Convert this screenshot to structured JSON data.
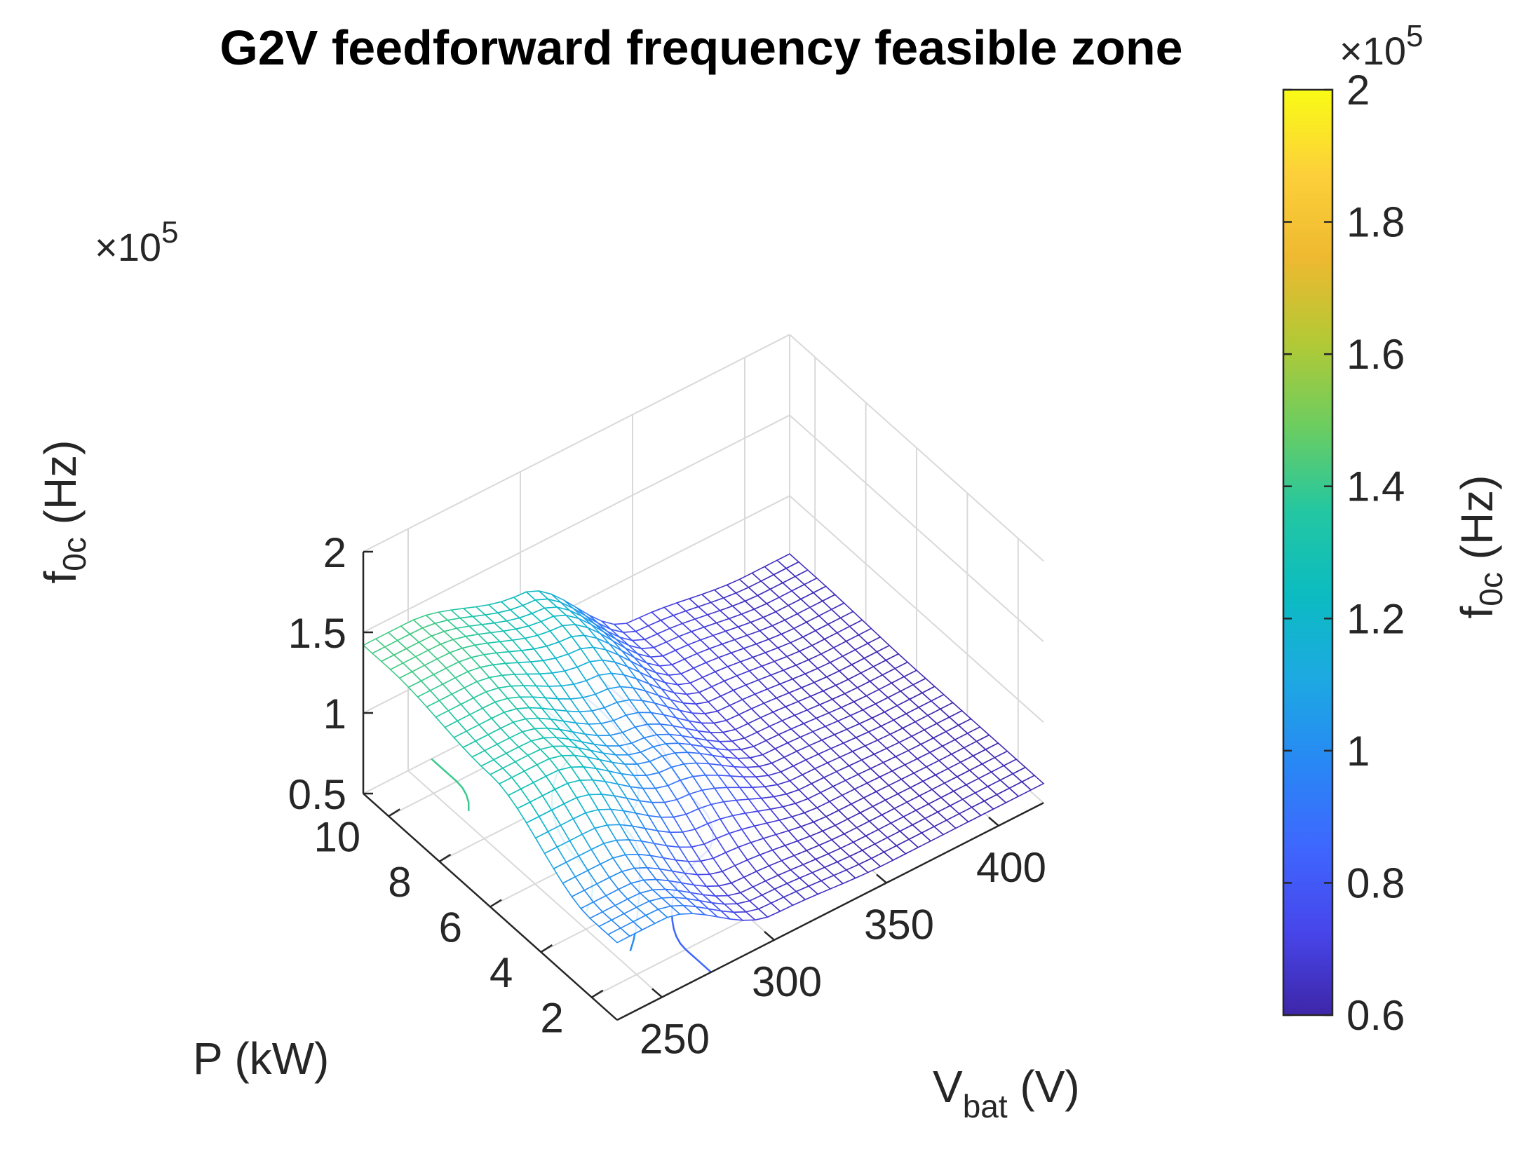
{
  "chart_data": {
    "type": "surface3d",
    "title": "G2V feedforward frequency feasible zone",
    "x_axis": {
      "label_main": "V",
      "label_sub": "bat",
      "label_unit": " (V)",
      "ticks": [
        250,
        300,
        350,
        400
      ],
      "range": [
        230,
        420
      ]
    },
    "y_axis": {
      "label": "P (kW)",
      "ticks": [
        2,
        4,
        6,
        8,
        10
      ],
      "range": [
        1,
        11
      ]
    },
    "z_axis": {
      "label_main": "f",
      "label_sub": "0c",
      "label_unit": " (Hz)",
      "ticks": [
        0.5,
        1,
        1.5,
        2
      ],
      "tick_labels": [
        "0.5",
        "1",
        "1.5",
        "2"
      ],
      "range": [
        0.5,
        2
      ],
      "exponent_base": "×10",
      "exponent": "5"
    },
    "colorbar": {
      "ticks": [
        0.6,
        0.8,
        1,
        1.2,
        1.4,
        1.6,
        1.8,
        2
      ],
      "tick_labels": [
        "0.6",
        "0.8",
        "1",
        "1.2",
        "1.4",
        "1.6",
        "1.8",
        "2"
      ],
      "range": [
        0.6,
        2
      ],
      "label_main": "f",
      "label_sub": "0c",
      "label_unit": " (Hz)",
      "exponent_base": "×10",
      "exponent": "5",
      "colormap": [
        "#3e26a8",
        "#4746eb",
        "#3e67fe",
        "#2888f4",
        "#1da9e2",
        "#0bbcc1",
        "#24c7a1",
        "#6ccd60",
        "#b3c935",
        "#eeb930",
        "#fdd03a",
        "#f9fb15"
      ]
    },
    "surface_samples_1e5Hz": {
      "V_bat": [
        250,
        300,
        350,
        400
      ],
      "P_kW": [
        2,
        6,
        10
      ],
      "f0c": [
        [
          0.98,
          1.32,
          1.42
        ],
        [
          0.66,
          0.98,
          1.24
        ],
        [
          0.62,
          0.66,
          0.72
        ],
        [
          0.62,
          0.62,
          0.64
        ]
      ]
    },
    "saturated_region_note": "",
    "grid": true,
    "view": "3-D surface with contour lines on floor"
  }
}
